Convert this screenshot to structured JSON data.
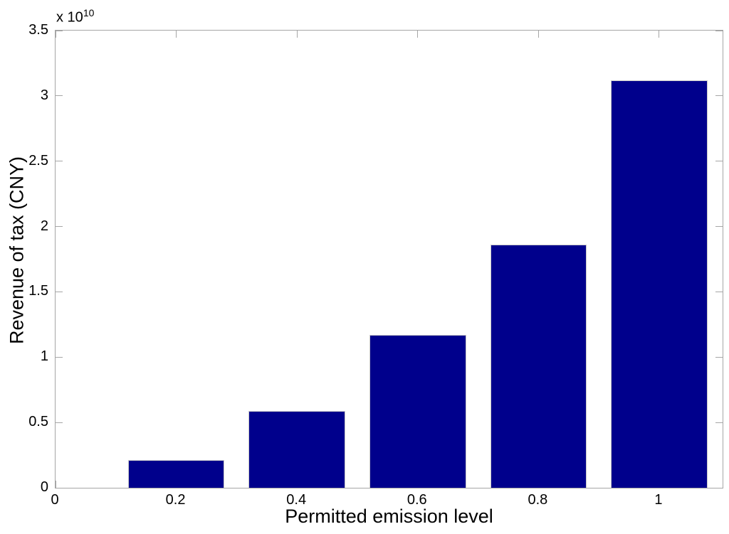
{
  "figure": {
    "background_color": "#ffffff",
    "axis_line_color": "#a6a6a6"
  },
  "chart_data": {
    "type": "bar",
    "title": "",
    "xlabel": "Permitted emission level",
    "ylabel": "Revenue of tax (CNY)",
    "y_multiplier_base": "x 10",
    "y_multiplier_exp": "10",
    "categories": [
      0.2,
      0.4,
      0.6,
      0.8,
      1
    ],
    "values": [
      2100000000.0,
      5900000000.0,
      11700000000.0,
      18600000000.0,
      31200000000.0
    ],
    "values_e10": [
      0.21,
      0.59,
      1.17,
      1.86,
      3.12
    ],
    "bar_width_units": 0.16,
    "xlim": [
      0,
      1.105
    ],
    "ylim_e10": [
      0,
      3.5
    ],
    "xticks": [
      0,
      0.2,
      0.4,
      0.6,
      0.8,
      1
    ],
    "xtick_labels": [
      "0",
      "0.2",
      "0.4",
      "0.6",
      "0.8",
      "1"
    ],
    "yticks_e10": [
      0,
      0.5,
      1,
      1.5,
      2,
      2.5,
      3,
      3.5
    ],
    "ytick_labels": [
      "0",
      "0.5",
      "1",
      "1.5",
      "2",
      "2.5",
      "3",
      "3.5"
    ],
    "grid": false,
    "legend": "none",
    "bar_color": "#00008C",
    "bar_edge_color": "#c9c9c9",
    "tick_direction": "in"
  }
}
